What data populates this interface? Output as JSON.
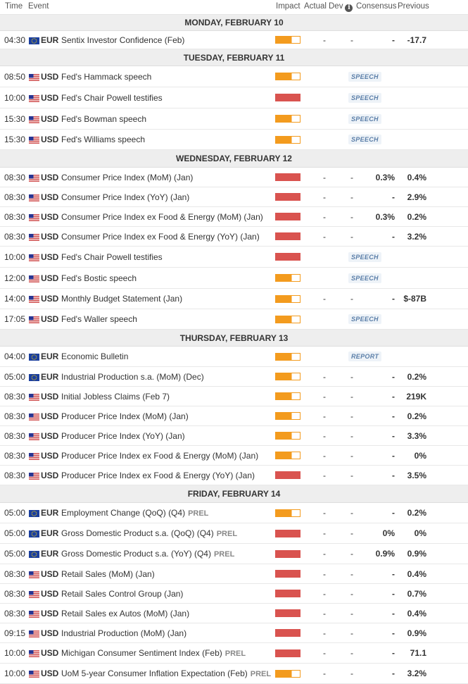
{
  "columns": {
    "time": "Time",
    "event": "Event",
    "impact": "Impact",
    "actual": "Actual",
    "dev": "Dev",
    "consensus": "Consensus",
    "previous": "Previous"
  },
  "colors": {
    "medium": "#f39b1e",
    "high": "#d9534f",
    "day_bg": "#eeeeee",
    "tag_text": "#5a7ea8"
  },
  "days": [
    {
      "label": "MONDAY, FEBRUARY 10",
      "rows": [
        {
          "time": "04:30",
          "flag": "eu",
          "cur": "EUR",
          "event": "Sentix Investor Confidence (Feb)",
          "prel": "",
          "impact": "medium",
          "actual": "-",
          "dev": "-",
          "cons": "-",
          "prev": "-17.7",
          "tag": ""
        }
      ]
    },
    {
      "label": "TUESDAY, FEBRUARY 11",
      "rows": [
        {
          "time": "08:50",
          "flag": "us",
          "cur": "USD",
          "event": "Fed's Hammack speech",
          "prel": "",
          "impact": "medium",
          "actual": "",
          "dev": "",
          "cons": "",
          "prev": "",
          "tag": "SPEECH"
        },
        {
          "time": "10:00",
          "flag": "us",
          "cur": "USD",
          "event": "Fed's Chair Powell testifies",
          "prel": "",
          "impact": "high",
          "actual": "",
          "dev": "",
          "cons": "",
          "prev": "",
          "tag": "SPEECH"
        },
        {
          "time": "15:30",
          "flag": "us",
          "cur": "USD",
          "event": "Fed's Bowman speech",
          "prel": "",
          "impact": "medium",
          "actual": "",
          "dev": "",
          "cons": "",
          "prev": "",
          "tag": "SPEECH"
        },
        {
          "time": "15:30",
          "flag": "us",
          "cur": "USD",
          "event": "Fed's Williams speech",
          "prel": "",
          "impact": "medium",
          "actual": "",
          "dev": "",
          "cons": "",
          "prev": "",
          "tag": "SPEECH"
        }
      ]
    },
    {
      "label": "WEDNESDAY, FEBRUARY 12",
      "rows": [
        {
          "time": "08:30",
          "flag": "us",
          "cur": "USD",
          "event": "Consumer Price Index (MoM) (Jan)",
          "prel": "",
          "impact": "high",
          "actual": "-",
          "dev": "-",
          "cons": "0.3%",
          "prev": "0.4%",
          "tag": ""
        },
        {
          "time": "08:30",
          "flag": "us",
          "cur": "USD",
          "event": "Consumer Price Index (YoY) (Jan)",
          "prel": "",
          "impact": "high",
          "actual": "-",
          "dev": "-",
          "cons": "-",
          "prev": "2.9%",
          "tag": ""
        },
        {
          "time": "08:30",
          "flag": "us",
          "cur": "USD",
          "event": "Consumer Price Index ex Food & Energy (MoM) (Jan)",
          "prel": "",
          "impact": "high",
          "actual": "-",
          "dev": "-",
          "cons": "0.3%",
          "prev": "0.2%",
          "tag": ""
        },
        {
          "time": "08:30",
          "flag": "us",
          "cur": "USD",
          "event": "Consumer Price Index ex Food & Energy (YoY) (Jan)",
          "prel": "",
          "impact": "high",
          "actual": "-",
          "dev": "-",
          "cons": "-",
          "prev": "3.2%",
          "tag": ""
        },
        {
          "time": "10:00",
          "flag": "us",
          "cur": "USD",
          "event": "Fed's Chair Powell testifies",
          "prel": "",
          "impact": "high",
          "actual": "",
          "dev": "",
          "cons": "",
          "prev": "",
          "tag": "SPEECH"
        },
        {
          "time": "12:00",
          "flag": "us",
          "cur": "USD",
          "event": "Fed's Bostic speech",
          "prel": "",
          "impact": "medium",
          "actual": "",
          "dev": "",
          "cons": "",
          "prev": "",
          "tag": "SPEECH"
        },
        {
          "time": "14:00",
          "flag": "us",
          "cur": "USD",
          "event": "Monthly Budget Statement (Jan)",
          "prel": "",
          "impact": "medium",
          "actual": "-",
          "dev": "-",
          "cons": "-",
          "prev": "$-87B",
          "tag": ""
        },
        {
          "time": "17:05",
          "flag": "us",
          "cur": "USD",
          "event": "Fed's Waller speech",
          "prel": "",
          "impact": "medium",
          "actual": "",
          "dev": "",
          "cons": "",
          "prev": "",
          "tag": "SPEECH"
        }
      ]
    },
    {
      "label": "THURSDAY, FEBRUARY 13",
      "rows": [
        {
          "time": "04:00",
          "flag": "eu",
          "cur": "EUR",
          "event": "Economic Bulletin",
          "prel": "",
          "impact": "medium",
          "actual": "",
          "dev": "",
          "cons": "",
          "prev": "",
          "tag": "REPORT"
        },
        {
          "time": "05:00",
          "flag": "eu",
          "cur": "EUR",
          "event": "Industrial Production s.a. (MoM) (Dec)",
          "prel": "",
          "impact": "medium",
          "actual": "-",
          "dev": "-",
          "cons": "-",
          "prev": "0.2%",
          "tag": ""
        },
        {
          "time": "08:30",
          "flag": "us",
          "cur": "USD",
          "event": "Initial Jobless Claims (Feb 7)",
          "prel": "",
          "impact": "medium",
          "actual": "-",
          "dev": "-",
          "cons": "-",
          "prev": "219K",
          "tag": ""
        },
        {
          "time": "08:30",
          "flag": "us",
          "cur": "USD",
          "event": "Producer Price Index (MoM) (Jan)",
          "prel": "",
          "impact": "medium",
          "actual": "-",
          "dev": "-",
          "cons": "-",
          "prev": "0.2%",
          "tag": ""
        },
        {
          "time": "08:30",
          "flag": "us",
          "cur": "USD",
          "event": "Producer Price Index (YoY) (Jan)",
          "prel": "",
          "impact": "medium",
          "actual": "-",
          "dev": "-",
          "cons": "-",
          "prev": "3.3%",
          "tag": ""
        },
        {
          "time": "08:30",
          "flag": "us",
          "cur": "USD",
          "event": "Producer Price Index ex Food & Energy (MoM) (Jan)",
          "prel": "",
          "impact": "medium",
          "actual": "-",
          "dev": "-",
          "cons": "-",
          "prev": "0%",
          "tag": ""
        },
        {
          "time": "08:30",
          "flag": "us",
          "cur": "USD",
          "event": "Producer Price Index ex Food & Energy (YoY) (Jan)",
          "prel": "",
          "impact": "high",
          "actual": "-",
          "dev": "-",
          "cons": "-",
          "prev": "3.5%",
          "tag": ""
        }
      ]
    },
    {
      "label": "FRIDAY, FEBRUARY 14",
      "rows": [
        {
          "time": "05:00",
          "flag": "eu",
          "cur": "EUR",
          "event": "Employment Change (QoQ) (Q4)",
          "prel": "PREL",
          "impact": "medium",
          "actual": "-",
          "dev": "-",
          "cons": "-",
          "prev": "0.2%",
          "tag": ""
        },
        {
          "time": "05:00",
          "flag": "eu",
          "cur": "EUR",
          "event": "Gross Domestic Product s.a. (QoQ) (Q4)",
          "prel": "PREL",
          "impact": "high",
          "actual": "-",
          "dev": "-",
          "cons": "0%",
          "prev": "0%",
          "tag": ""
        },
        {
          "time": "05:00",
          "flag": "eu",
          "cur": "EUR",
          "event": "Gross Domestic Product s.a. (YoY) (Q4)",
          "prel": "PREL",
          "impact": "high",
          "actual": "-",
          "dev": "-",
          "cons": "0.9%",
          "prev": "0.9%",
          "tag": ""
        },
        {
          "time": "08:30",
          "flag": "us",
          "cur": "USD",
          "event": "Retail Sales (MoM) (Jan)",
          "prel": "",
          "impact": "high",
          "actual": "-",
          "dev": "-",
          "cons": "-",
          "prev": "0.4%",
          "tag": ""
        },
        {
          "time": "08:30",
          "flag": "us",
          "cur": "USD",
          "event": "Retail Sales Control Group (Jan)",
          "prel": "",
          "impact": "high",
          "actual": "-",
          "dev": "-",
          "cons": "-",
          "prev": "0.7%",
          "tag": ""
        },
        {
          "time": "08:30",
          "flag": "us",
          "cur": "USD",
          "event": "Retail Sales ex Autos (MoM) (Jan)",
          "prel": "",
          "impact": "high",
          "actual": "-",
          "dev": "-",
          "cons": "-",
          "prev": "0.4%",
          "tag": ""
        },
        {
          "time": "09:15",
          "flag": "us",
          "cur": "USD",
          "event": "Industrial Production (MoM) (Jan)",
          "prel": "",
          "impact": "high",
          "actual": "-",
          "dev": "-",
          "cons": "-",
          "prev": "0.9%",
          "tag": ""
        },
        {
          "time": "10:00",
          "flag": "us",
          "cur": "USD",
          "event": "Michigan Consumer Sentiment Index (Feb)",
          "prel": "PREL",
          "impact": "high",
          "actual": "-",
          "dev": "-",
          "cons": "-",
          "prev": "71.1",
          "tag": ""
        },
        {
          "time": "10:00",
          "flag": "us",
          "cur": "USD",
          "event": "UoM 5-year Consumer Inflation Expectation (Feb)",
          "prel": "PREL",
          "impact": "medium",
          "actual": "-",
          "dev": "-",
          "cons": "-",
          "prev": "3.2%",
          "tag": ""
        }
      ]
    }
  ]
}
